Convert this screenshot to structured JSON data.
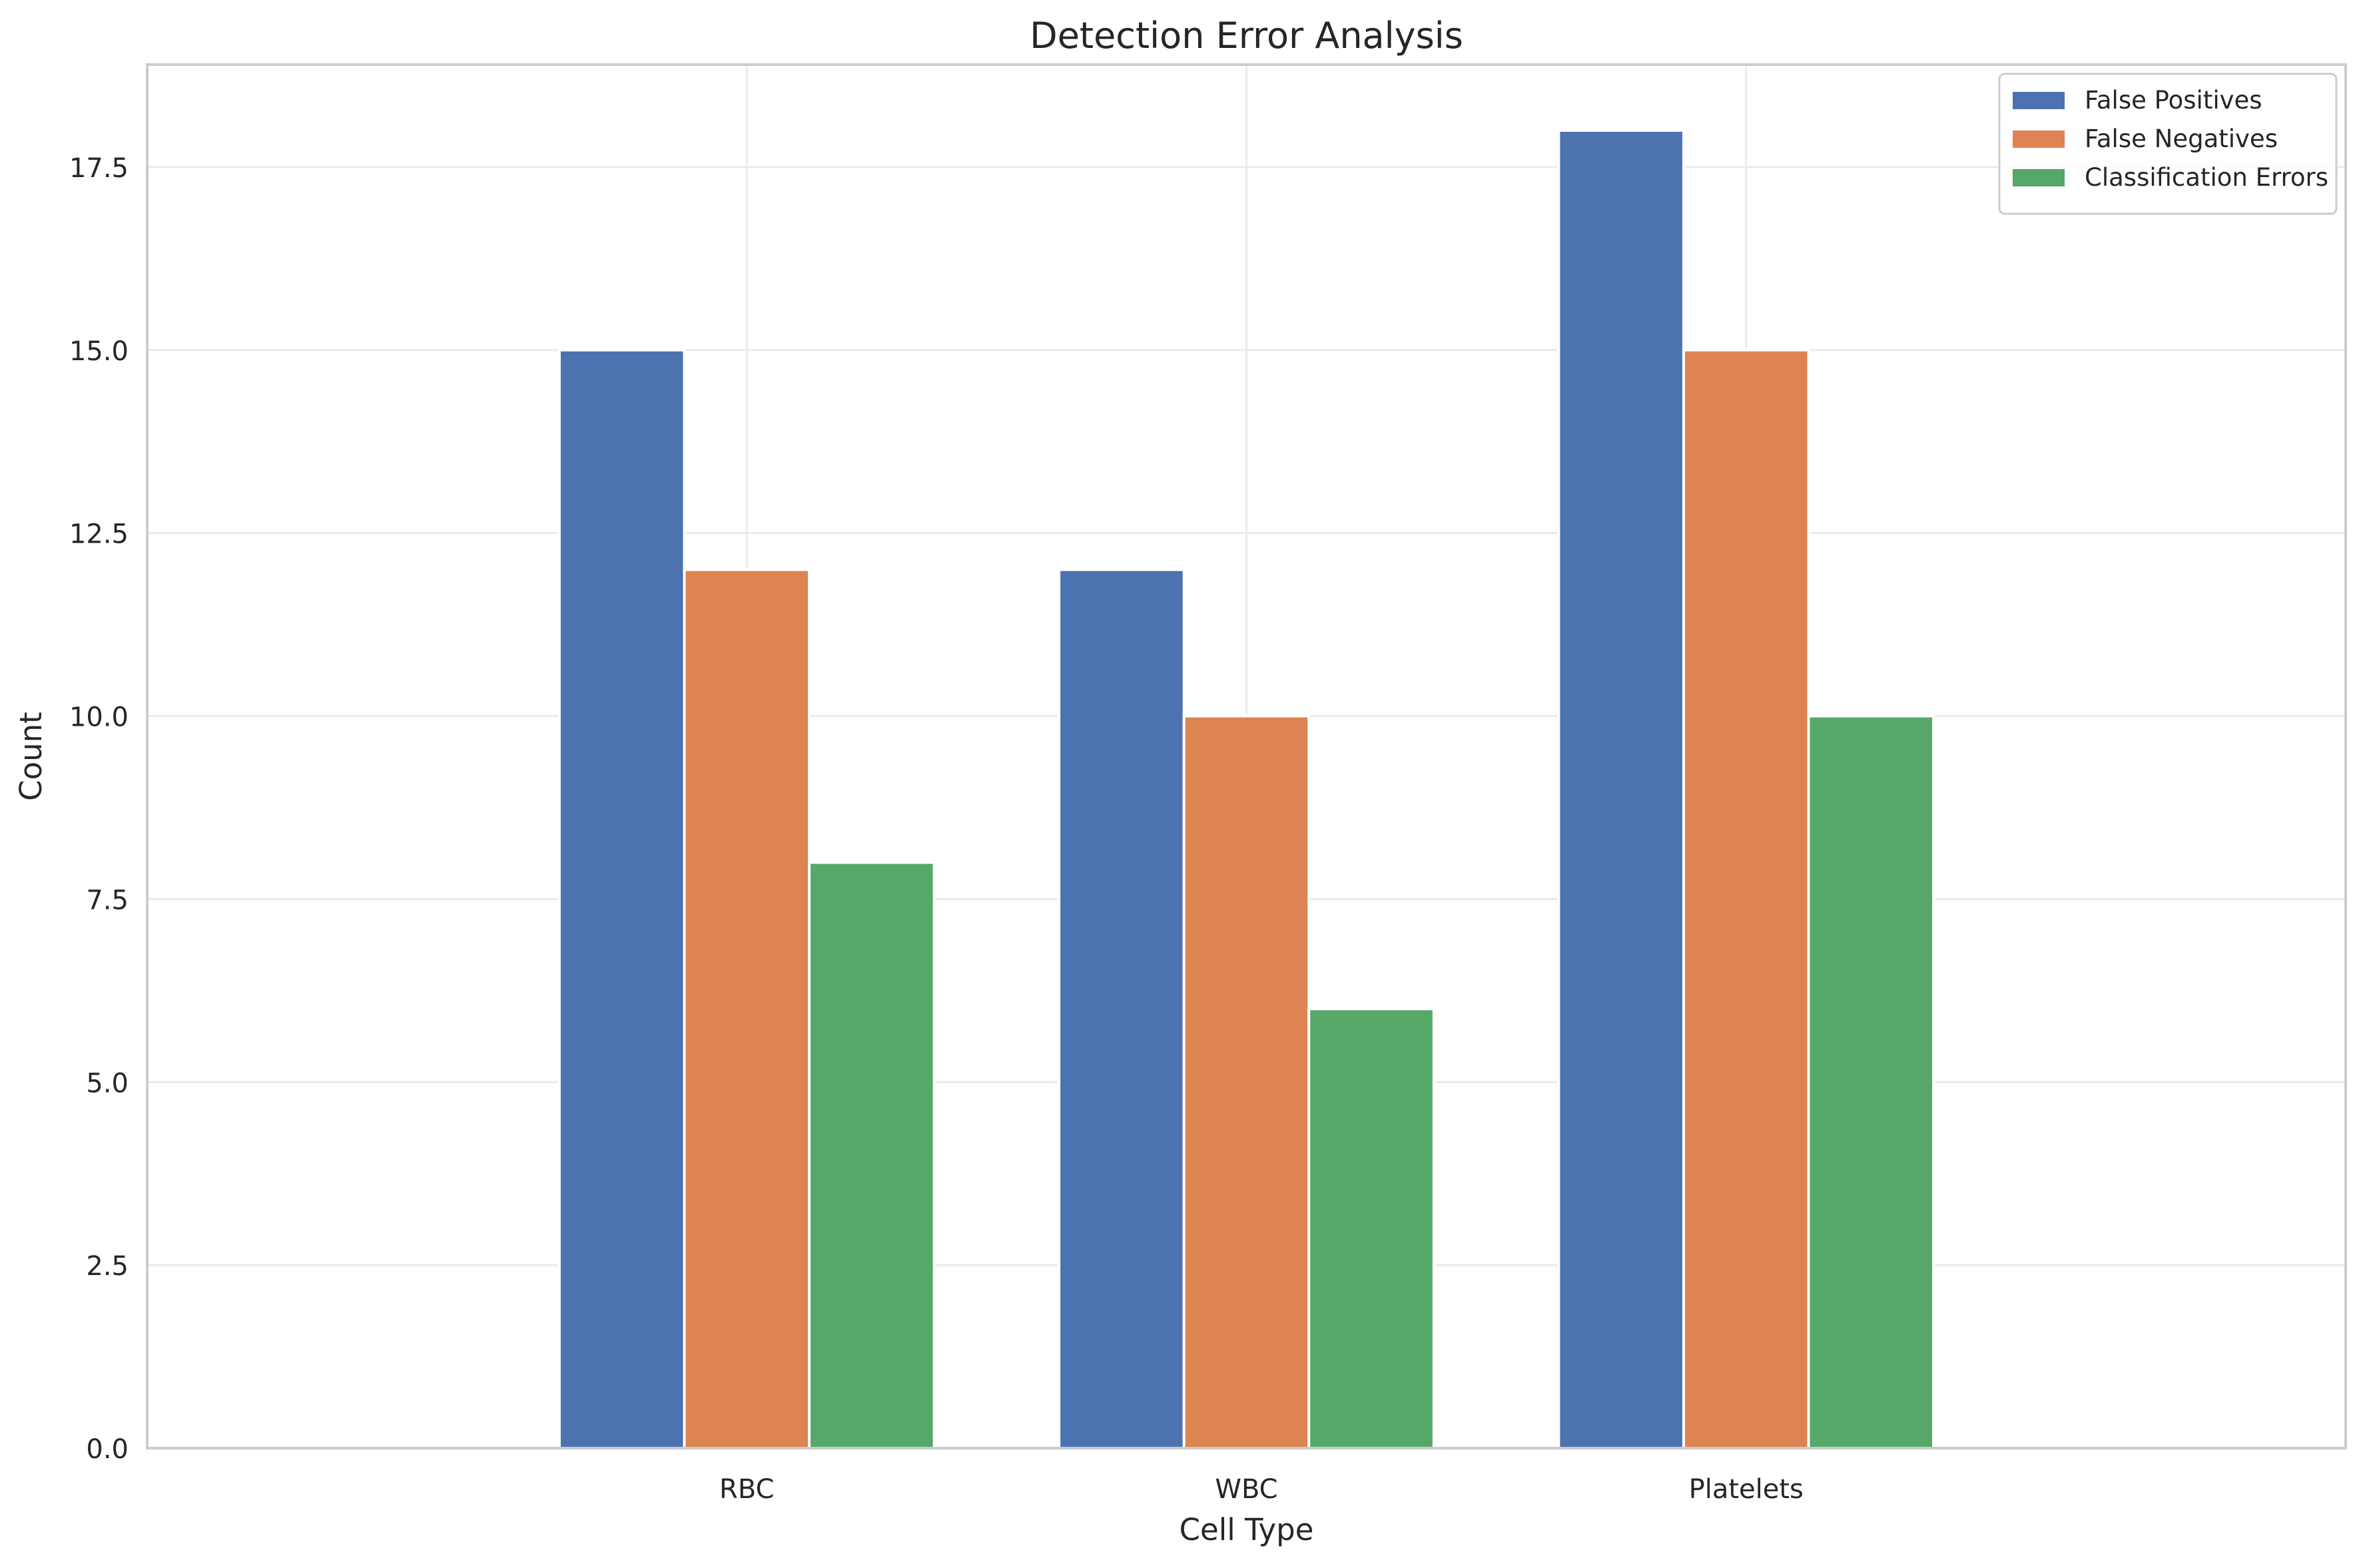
{
  "chart_data": {
    "type": "bar",
    "title": "Detection Error Analysis",
    "xlabel": "Cell Type",
    "ylabel": "Count",
    "categories": [
      "RBC",
      "WBC",
      "Platelets"
    ],
    "series": [
      {
        "name": "False Positives",
        "values": [
          15,
          12,
          18
        ],
        "color": "#4c72b0"
      },
      {
        "name": "False Negatives",
        "values": [
          12,
          10,
          15
        ],
        "color": "#dd8452"
      },
      {
        "name": "Classification Errors",
        "values": [
          8,
          6,
          10
        ],
        "color": "#55a868"
      }
    ],
    "ylim": [
      0,
      18.9
    ],
    "yticks": [
      0.0,
      2.5,
      5.0,
      7.5,
      10.0,
      12.5,
      15.0,
      17.5
    ],
    "ytick_labels": [
      "0.0",
      "2.5",
      "5.0",
      "7.5",
      "10.0",
      "12.5",
      "15.0",
      "17.5"
    ],
    "grid": true,
    "legend_position": "top-right",
    "colors": {
      "background": "#ffffff",
      "grid": "#ebebeb",
      "spine": "#cccccc",
      "text": "#262626"
    }
  }
}
